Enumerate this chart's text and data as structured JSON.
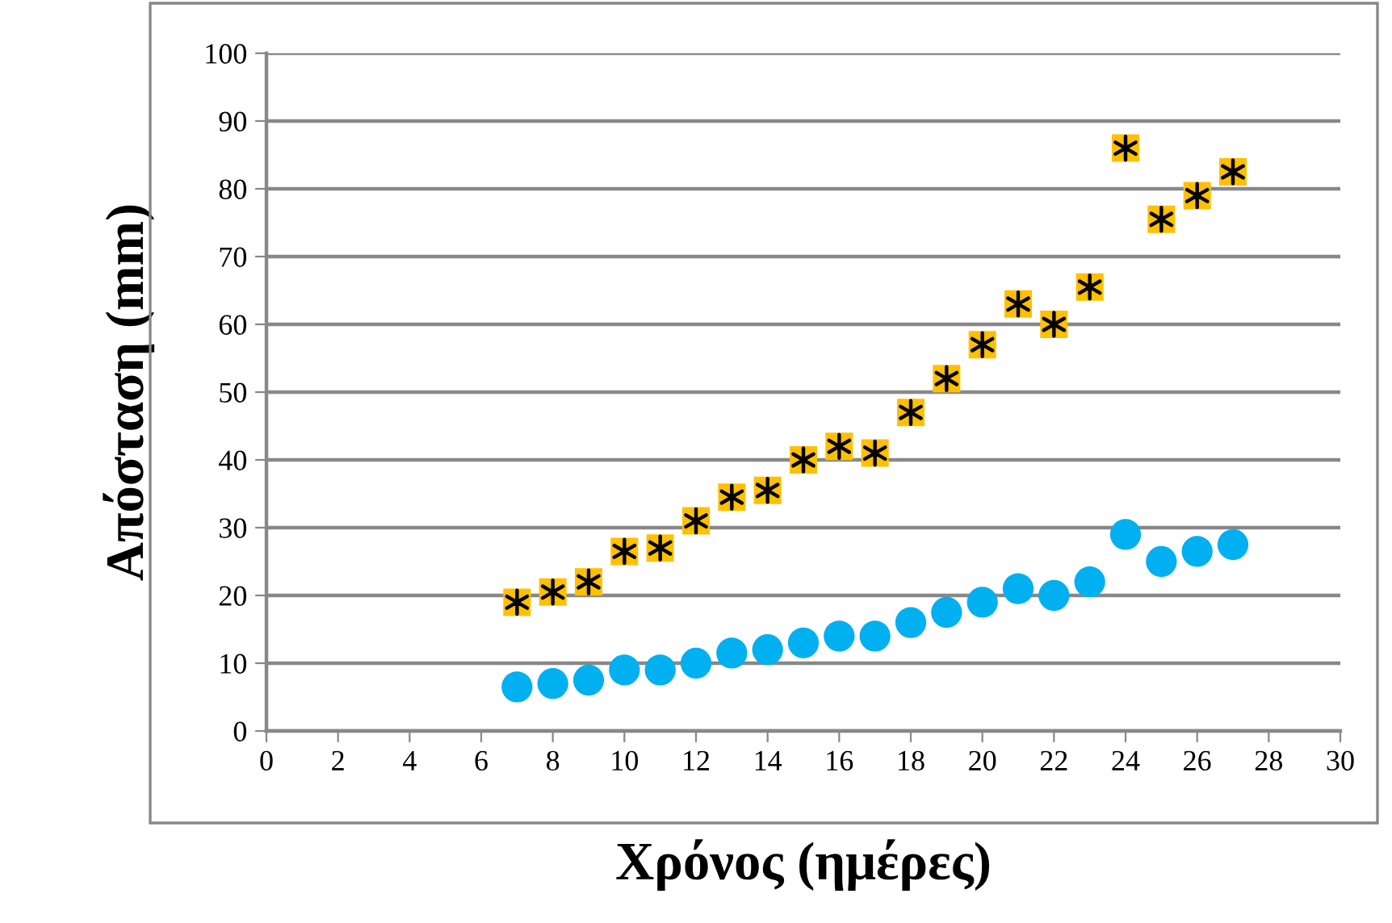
{
  "chart_data": {
    "type": "scatter",
    "xlabel": "Χρόνος (ημέρες)",
    "ylabel": "Απόσταση (mm)",
    "x": [
      7,
      8,
      9,
      10,
      11,
      12,
      13,
      14,
      15,
      16,
      17,
      18,
      19,
      20,
      21,
      22,
      23,
      24,
      25,
      26,
      27
    ],
    "series": [
      {
        "color": "#ffc000",
        "marker": "square",
        "values": [
          19,
          20.5,
          22,
          26.5,
          27,
          31,
          34.5,
          35.5,
          40,
          42,
          41,
          47,
          52,
          57,
          63,
          60,
          65.5,
          86,
          75.5,
          79,
          82.5
        ]
      },
      {
        "color": "#00b0f0",
        "marker": "circle",
        "values": [
          6.5,
          7,
          7.5,
          9,
          9,
          10,
          11.5,
          12,
          13,
          14,
          14,
          16,
          17.5,
          19,
          21,
          20,
          22,
          29,
          25,
          26.5,
          27.5
        ]
      }
    ],
    "xlim": [
      0,
      30
    ],
    "xticks": [
      0,
      2,
      4,
      6,
      8,
      10,
      12,
      14,
      16,
      18,
      20,
      22,
      24,
      26,
      28,
      30
    ],
    "ylim": [
      0,
      100
    ],
    "yticks": [
      0,
      10,
      20,
      30,
      40,
      50,
      60,
      70,
      80,
      90,
      100
    ],
    "grid": "y",
    "legend": false
  }
}
